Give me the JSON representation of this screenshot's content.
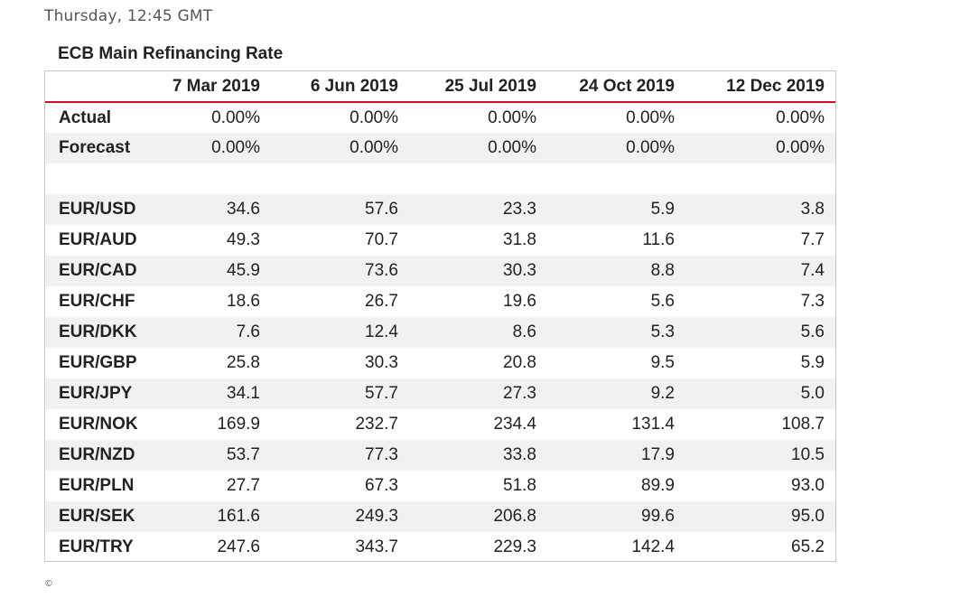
{
  "timestamp": "Thursday, 12:45 GMT",
  "table": {
    "title": "ECB Main Refinancing Rate",
    "headers": [
      "",
      "7 Mar 2019",
      "6 Jun 2019",
      "25 Jul 2019",
      "24 Oct 2019",
      "12 Dec 2019"
    ],
    "rows": [
      {
        "label": "Actual",
        "values": [
          "0.00%",
          "0.00%",
          "0.00%",
          "0.00%",
          "0.00%"
        ]
      },
      {
        "label": "Forecast",
        "values": [
          "0.00%",
          "0.00%",
          "0.00%",
          "0.00%",
          "0.00%"
        ]
      },
      {
        "label": "",
        "values": [
          "",
          "",
          "",
          "",
          ""
        ]
      },
      {
        "label": "EUR/USD",
        "values": [
          "34.6",
          "57.6",
          "23.3",
          "5.9",
          "3.8"
        ]
      },
      {
        "label": "EUR/AUD",
        "values": [
          "49.3",
          "70.7",
          "31.8",
          "11.6",
          "7.7"
        ]
      },
      {
        "label": "EUR/CAD",
        "values": [
          "45.9",
          "73.6",
          "30.3",
          "8.8",
          "7.4"
        ]
      },
      {
        "label": "EUR/CHF",
        "values": [
          "18.6",
          "26.7",
          "19.6",
          "5.6",
          "7.3"
        ]
      },
      {
        "label": "EUR/DKK",
        "values": [
          "7.6",
          "12.4",
          "8.6",
          "5.3",
          "5.6"
        ]
      },
      {
        "label": "EUR/GBP",
        "values": [
          "25.8",
          "30.3",
          "20.8",
          "9.5",
          "5.9"
        ]
      },
      {
        "label": "EUR/JPY",
        "values": [
          "34.1",
          "57.7",
          "27.3",
          "9.2",
          "5.0"
        ]
      },
      {
        "label": "EUR/NOK",
        "values": [
          "169.9",
          "232.7",
          "234.4",
          "131.4",
          "108.7"
        ]
      },
      {
        "label": "EUR/NZD",
        "values": [
          "53.7",
          "77.3",
          "33.8",
          "17.9",
          "10.5"
        ]
      },
      {
        "label": "EUR/PLN",
        "values": [
          "27.7",
          "67.3",
          "51.8",
          "89.9",
          "93.0"
        ]
      },
      {
        "label": "EUR/SEK",
        "values": [
          "161.6",
          "249.3",
          "206.8",
          "99.6",
          "95.0"
        ]
      },
      {
        "label": "EUR/TRY",
        "values": [
          "247.6",
          "343.7",
          "229.3",
          "142.4",
          "65.2"
        ]
      }
    ]
  },
  "colors": {
    "header_rule": "#c8102e",
    "alt_row": "#f1f1f1",
    "border": "#c9c9c9"
  },
  "footer": {
    "copyright": "©"
  }
}
